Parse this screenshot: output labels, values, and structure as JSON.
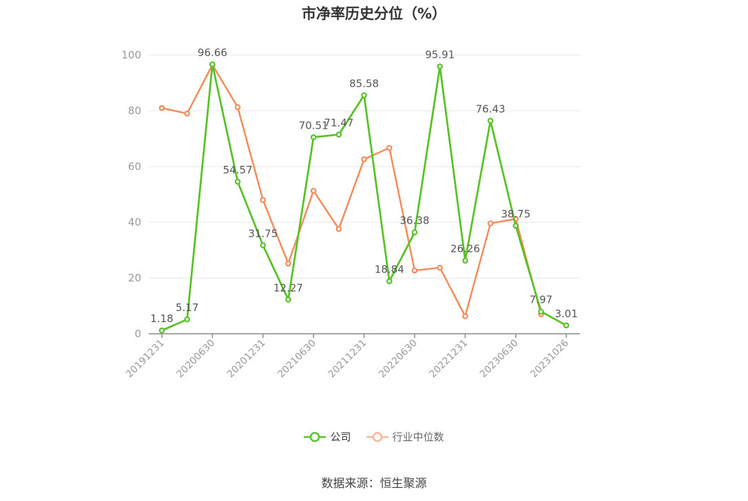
{
  "chart_data": {
    "type": "line",
    "title": "市净率历史分位（%）",
    "source": "数据来源：恒生聚源",
    "xlabel": "",
    "ylabel": "",
    "ylim": [
      0,
      100
    ],
    "y_ticks": [
      0,
      20,
      40,
      60,
      80,
      100
    ],
    "x_tick_labels": [
      "20191231",
      "20200630",
      "20201231",
      "20210630",
      "20211231",
      "20220630",
      "20221231",
      "20230630",
      "20231026"
    ],
    "grid": true,
    "legend_position": "bottom-center",
    "x": [
      "20191231",
      "20200331",
      "20200630",
      "20200930",
      "20201231",
      "20210331",
      "20210630",
      "20210930",
      "20211231",
      "20220331",
      "20220630",
      "20220930",
      "20221231",
      "20230331",
      "20230630",
      "20230930",
      "20231026"
    ],
    "series": [
      {
        "name": "公司",
        "color": "#5ac229",
        "values": [
          1.18,
          5.17,
          96.66,
          54.57,
          31.75,
          12.27,
          70.51,
          71.47,
          85.58,
          18.84,
          36.38,
          95.91,
          26.26,
          76.43,
          38.75,
          7.97,
          3.01
        ],
        "labels": [
          "1.18",
          "5.17",
          "96.66",
          "54.57",
          "31.75",
          "12.27",
          "70.51",
          "71.47",
          "85.58",
          "18.84",
          "36.38",
          "95.91",
          "26.26",
          "76.43",
          "38.75",
          "7.97",
          "3.01"
        ]
      },
      {
        "name": "行业中位数",
        "color": "#f28c5a",
        "values": [
          81,
          79,
          96.5,
          81.3,
          48,
          25.2,
          51.3,
          37.6,
          62.6,
          66.7,
          22.7,
          23.7,
          6.3,
          39.6,
          41.2,
          7.0,
          null
        ]
      }
    ]
  }
}
